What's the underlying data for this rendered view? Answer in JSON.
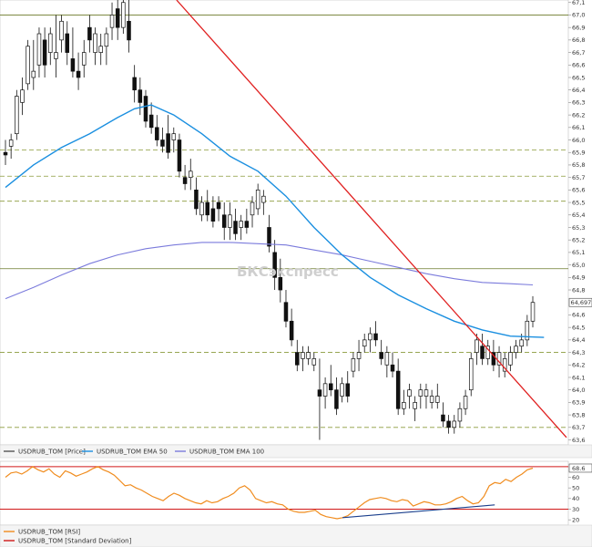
{
  "watermark": "БКСэкспресс",
  "chart_data": [
    {
      "type": "candlestick",
      "price_axis": {
        "ticks": [
          "63,6",
          "63,7",
          "63,8",
          "63,9",
          "64,0",
          "64,1",
          "64,2",
          "64,3",
          "64,4",
          "64,5",
          "64,6",
          "64,8",
          "64,9",
          "65,0",
          "65,1",
          "65,2",
          "65,3",
          "65,4",
          "65,5",
          "65,6",
          "65,7",
          "65,8",
          "65,9",
          "66,0",
          "66,1",
          "66,2",
          "66,3",
          "66,4",
          "66,5",
          "66,6",
          "66,7",
          "66,8",
          "66,9",
          "67,0",
          "67,1"
        ],
        "ylim": [
          63.56,
          67.12
        ],
        "current_price_label": "64,6975"
      },
      "legend": [
        {
          "name": "USDRUB_TOM [Price]",
          "color": "#555555"
        },
        {
          "name": "USDRUB_TOM EMA 50",
          "color": "#1a8fe0"
        },
        {
          "name": "USDRUB_TOM EMA 100",
          "color": "#7b7bdc"
        }
      ],
      "hlines_solid": [
        67.0,
        64.97
      ],
      "hlines_dashed": [
        65.92,
        65.71,
        65.51,
        64.3,
        63.7
      ],
      "trendline": {
        "color": "#e02020",
        "from": [
          30.5,
          67.12
        ],
        "to": [
          100,
          63.62
        ]
      },
      "candles": [
        [
          65.9,
          66.0,
          65.8,
          65.88
        ],
        [
          65.95,
          66.05,
          65.85,
          66.0
        ],
        [
          66.05,
          66.4,
          66.0,
          66.35
        ],
        [
          66.3,
          66.5,
          66.2,
          66.4
        ],
        [
          66.45,
          66.8,
          66.4,
          66.75
        ],
        [
          66.5,
          66.8,
          66.4,
          66.55
        ],
        [
          66.6,
          66.9,
          66.5,
          66.85
        ],
        [
          66.8,
          66.9,
          66.5,
          66.6
        ],
        [
          66.7,
          66.9,
          66.6,
          66.85
        ],
        [
          66.65,
          67.0,
          66.5,
          66.7
        ],
        [
          66.8,
          67.0,
          66.7,
          66.95
        ],
        [
          66.85,
          66.95,
          66.6,
          66.7
        ],
        [
          66.65,
          66.9,
          66.5,
          66.55
        ],
        [
          66.55,
          66.7,
          66.4,
          66.5
        ],
        [
          66.6,
          66.8,
          66.5,
          66.7
        ],
        [
          66.9,
          67.0,
          66.7,
          66.8
        ],
        [
          66.7,
          66.9,
          66.6,
          66.85
        ],
        [
          66.7,
          66.85,
          66.6,
          66.75
        ],
        [
          66.75,
          66.9,
          66.6,
          66.85
        ],
        [
          66.9,
          67.1,
          66.8,
          67.0
        ],
        [
          67.05,
          67.15,
          66.8,
          66.9
        ],
        [
          66.9,
          67.15,
          66.85,
          67.1
        ],
        [
          66.95,
          67.15,
          66.7,
          66.8
        ],
        [
          66.5,
          66.6,
          66.3,
          66.4
        ],
        [
          66.4,
          66.5,
          66.2,
          66.3
        ],
        [
          66.35,
          66.4,
          66.1,
          66.15
        ],
        [
          66.2,
          66.3,
          66.05,
          66.1
        ],
        [
          66.1,
          66.2,
          65.95,
          66.0
        ],
        [
          66.0,
          66.1,
          65.9,
          65.95
        ],
        [
          66.05,
          66.2,
          65.85,
          65.9
        ],
        [
          66.0,
          66.1,
          65.9,
          66.05
        ],
        [
          66.0,
          66.05,
          65.7,
          65.75
        ],
        [
          65.7,
          65.8,
          65.6,
          65.65
        ],
        [
          65.7,
          65.85,
          65.6,
          65.75
        ],
        [
          65.6,
          65.7,
          65.4,
          65.45
        ],
        [
          65.4,
          65.55,
          65.35,
          65.5
        ],
        [
          65.5,
          65.6,
          65.35,
          65.4
        ],
        [
          65.45,
          65.55,
          65.3,
          65.35
        ],
        [
          65.5,
          65.55,
          65.35,
          65.45
        ],
        [
          65.4,
          65.5,
          65.2,
          65.3
        ],
        [
          65.3,
          65.5,
          65.2,
          65.4
        ],
        [
          65.35,
          65.45,
          65.2,
          65.25
        ],
        [
          65.3,
          65.4,
          65.2,
          65.35
        ],
        [
          65.35,
          65.45,
          65.25,
          65.3
        ],
        [
          65.4,
          65.55,
          65.3,
          65.5
        ],
        [
          65.45,
          65.65,
          65.4,
          65.6
        ],
        [
          65.5,
          65.6,
          65.4,
          65.55
        ],
        [
          65.3,
          65.4,
          65.1,
          65.15
        ],
        [
          65.1,
          65.2,
          64.8,
          64.9
        ],
        [
          64.9,
          65.05,
          64.7,
          64.8
        ],
        [
          64.7,
          64.8,
          64.5,
          64.55
        ],
        [
          64.55,
          64.65,
          64.35,
          64.4
        ],
        [
          64.3,
          64.4,
          64.15,
          64.2
        ],
        [
          64.25,
          64.35,
          64.15,
          64.3
        ],
        [
          64.25,
          64.35,
          64.2,
          64.3
        ],
        [
          64.2,
          64.3,
          64.15,
          64.25
        ],
        [
          64.0,
          64.25,
          63.6,
          63.95
        ],
        [
          63.95,
          64.1,
          63.85,
          64.05
        ],
        [
          64.05,
          64.2,
          63.95,
          64.0
        ],
        [
          64.0,
          64.1,
          63.8,
          63.85
        ],
        [
          63.95,
          64.1,
          63.9,
          64.05
        ],
        [
          64.05,
          64.15,
          63.9,
          63.95
        ],
        [
          64.15,
          64.3,
          64.1,
          64.25
        ],
        [
          64.25,
          64.4,
          64.15,
          64.3
        ],
        [
          64.35,
          64.45,
          64.3,
          64.4
        ],
        [
          64.4,
          64.5,
          64.3,
          64.45
        ],
        [
          64.45,
          64.55,
          64.35,
          64.4
        ],
        [
          64.3,
          64.4,
          64.2,
          64.25
        ],
        [
          64.2,
          64.35,
          64.1,
          64.3
        ],
        [
          64.2,
          64.3,
          64.1,
          64.15
        ],
        [
          64.15,
          64.25,
          63.8,
          63.85
        ],
        [
          63.85,
          64.0,
          63.8,
          63.9
        ],
        [
          63.95,
          64.05,
          63.85,
          64.0
        ],
        [
          63.85,
          63.95,
          63.75,
          63.9
        ],
        [
          63.95,
          64.05,
          63.85,
          64.0
        ],
        [
          63.95,
          64.05,
          63.85,
          64.0
        ],
        [
          63.9,
          64.0,
          63.85,
          63.95
        ],
        [
          63.9,
          64.05,
          63.85,
          63.95
        ],
        [
          63.8,
          63.9,
          63.7,
          63.75
        ],
        [
          63.75,
          63.8,
          63.65,
          63.7
        ],
        [
          63.7,
          63.8,
          63.65,
          63.75
        ],
        [
          63.75,
          63.9,
          63.7,
          63.85
        ],
        [
          63.85,
          64.0,
          63.8,
          63.95
        ],
        [
          64.0,
          64.3,
          63.95,
          64.25
        ],
        [
          64.3,
          64.45,
          64.2,
          64.4
        ],
        [
          64.35,
          64.45,
          64.2,
          64.25
        ],
        [
          64.25,
          64.4,
          64.2,
          64.35
        ],
        [
          64.3,
          64.4,
          64.15,
          64.2
        ],
        [
          64.2,
          64.35,
          64.1,
          64.3
        ],
        [
          64.15,
          64.3,
          64.1,
          64.25
        ],
        [
          64.2,
          64.35,
          64.15,
          64.3
        ],
        [
          64.3,
          64.4,
          64.25,
          64.35
        ],
        [
          64.35,
          64.45,
          64.3,
          64.4
        ],
        [
          64.4,
          64.6,
          64.35,
          64.55
        ],
        [
          64.55,
          64.75,
          64.5,
          64.7
        ]
      ],
      "ema50": [
        [
          0,
          65.62
        ],
        [
          5,
          65.8
        ],
        [
          10,
          65.94
        ],
        [
          15,
          66.05
        ],
        [
          20,
          66.18
        ],
        [
          23,
          66.25
        ],
        [
          26,
          66.28
        ],
        [
          30,
          66.2
        ],
        [
          35,
          66.05
        ],
        [
          40,
          65.87
        ],
        [
          45,
          65.75
        ],
        [
          50,
          65.55
        ],
        [
          55,
          65.3
        ],
        [
          60,
          65.08
        ],
        [
          65,
          64.9
        ],
        [
          70,
          64.76
        ],
        [
          75,
          64.65
        ],
        [
          80,
          64.55
        ],
        [
          85,
          64.48
        ],
        [
          90,
          64.43
        ],
        [
          96,
          64.42
        ]
      ],
      "ema100": [
        [
          0,
          64.73
        ],
        [
          5,
          64.82
        ],
        [
          10,
          64.92
        ],
        [
          15,
          65.01
        ],
        [
          20,
          65.08
        ],
        [
          25,
          65.13
        ],
        [
          30,
          65.16
        ],
        [
          35,
          65.18
        ],
        [
          40,
          65.18
        ],
        [
          45,
          65.17
        ],
        [
          50,
          65.16
        ],
        [
          55,
          65.12
        ],
        [
          60,
          65.08
        ],
        [
          65,
          65.03
        ],
        [
          70,
          64.98
        ],
        [
          75,
          64.93
        ],
        [
          80,
          64.89
        ],
        [
          85,
          64.86
        ],
        [
          90,
          64.85
        ],
        [
          94,
          64.84
        ]
      ]
    },
    {
      "type": "line",
      "series_name": "USDRUB_TOM [RSI]",
      "color": "#f08c1e",
      "ticks": [
        "20",
        "30",
        "40",
        "50",
        "60"
      ],
      "ylim": [
        15,
        75
      ],
      "current_value_label": "68.6",
      "levels": [
        70,
        30
      ],
      "divergence_line": {
        "color": "#1a3e8c",
        "from": [
          62,
          22
        ],
        "to": [
          90,
          34
        ]
      },
      "values": [
        60,
        64,
        65,
        63,
        66,
        70,
        67,
        65,
        68,
        63,
        60,
        66,
        64,
        61,
        63,
        65,
        68,
        70,
        67,
        65,
        62,
        57,
        52,
        53,
        50,
        48,
        45,
        42,
        40,
        38,
        42,
        45,
        43,
        40,
        38,
        36,
        35,
        38,
        36,
        37,
        40,
        42,
        45,
        50,
        52,
        48,
        40,
        38,
        36,
        37,
        35,
        34,
        30,
        28,
        27,
        27,
        28,
        29,
        25,
        23,
        22,
        21,
        22,
        24,
        28,
        32,
        36,
        39,
        40,
        41,
        40,
        38,
        37,
        39,
        38,
        33,
        35,
        37,
        36,
        34,
        34,
        35,
        37,
        40,
        42,
        38,
        35,
        36,
        42,
        52,
        55,
        54,
        58,
        56,
        60,
        63,
        67,
        68.6
      ]
    },
    {
      "type": "legend",
      "entries": [
        "USDRUB_TOM [RSI]",
        "USDRUB_TOM [Standard Deviation]"
      ]
    }
  ]
}
